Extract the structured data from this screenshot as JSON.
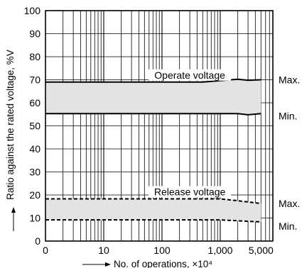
{
  "chart_data": {
    "type": "area",
    "title": "",
    "xlabel": "No. of operations, ×10⁴",
    "ylabel": "Ratio against the rated voltage, %V",
    "x_scale": "log",
    "xlim": [
      1,
      8000
    ],
    "ylim": [
      0,
      100
    ],
    "grid": true,
    "x_ticks": [
      {
        "value": 1,
        "label": "0"
      },
      {
        "value": 10,
        "label": "10"
      },
      {
        "value": 100,
        "label": "100"
      },
      {
        "value": 1000,
        "label": "1,000"
      },
      {
        "value": 5000,
        "label": "5,000"
      }
    ],
    "y_ticks": [
      0,
      10,
      20,
      30,
      40,
      50,
      60,
      70,
      80,
      90,
      100
    ],
    "bands": [
      {
        "name": "Operate voltage",
        "upper_label": "Max.",
        "lower_label": "Min.",
        "line_style": "solid",
        "upper": {
          "x": [
            1,
            500,
            2000,
            3000,
            5000
          ],
          "y": [
            69.0,
            69.0,
            70.2,
            69.8,
            70.0
          ]
        },
        "lower": {
          "x": [
            1,
            1000,
            2000,
            3000,
            5000
          ],
          "y": [
            55.3,
            55.3,
            55.3,
            54.8,
            55.3
          ]
        }
      },
      {
        "name": "Release voltage",
        "upper_label": "Max.",
        "lower_label": "Min.",
        "line_style": "dashed",
        "upper": {
          "x": [
            1,
            1000,
            2000,
            5000
          ],
          "y": [
            18.3,
            18.3,
            17.5,
            16.3
          ]
        },
        "lower": {
          "x": [
            1,
            1000,
            2000,
            5000
          ],
          "y": [
            9.2,
            9.2,
            8.8,
            8.3
          ]
        }
      }
    ]
  }
}
